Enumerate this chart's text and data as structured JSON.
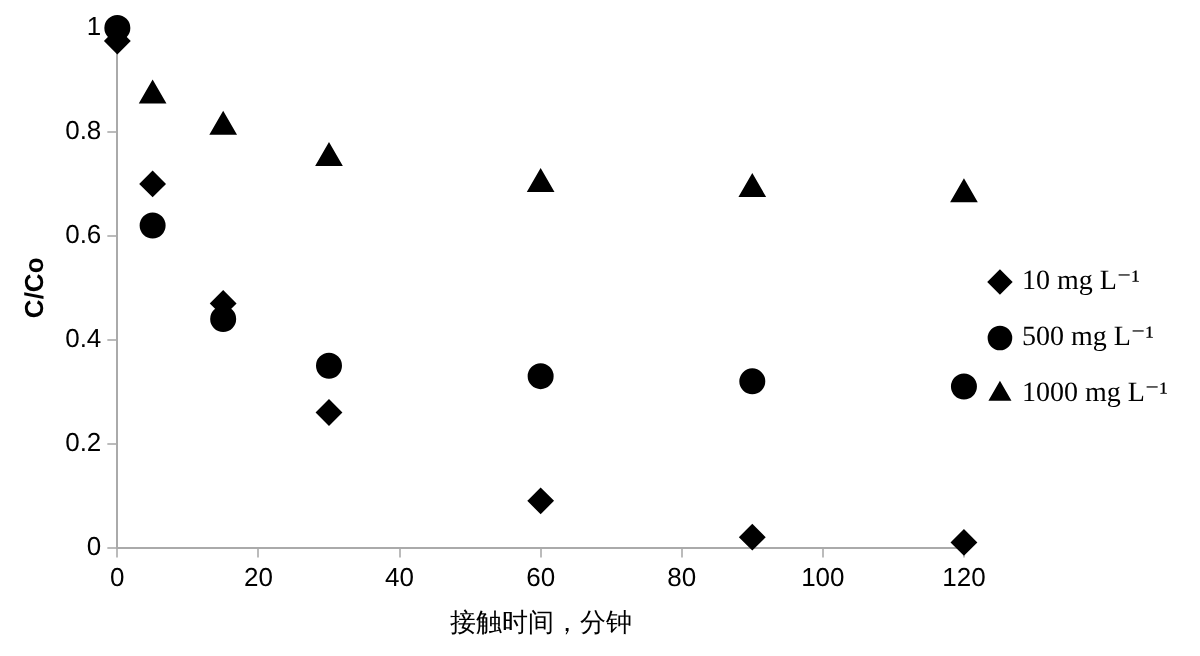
{
  "chart_data": {
    "type": "scatter",
    "xlabel": "接触时间，分钟",
    "ylabel": "C/Co",
    "xlim": [
      0,
      120
    ],
    "xticks": [
      0,
      20,
      40,
      60,
      80,
      100,
      120
    ],
    "ylim": [
      0,
      1
    ],
    "yticks": [
      0,
      0.2,
      0.4,
      0.6,
      0.8,
      1
    ],
    "grid": false,
    "legend": "right",
    "x": [
      0,
      5,
      15,
      30,
      60,
      90,
      120
    ],
    "series": [
      {
        "name": "10 mg L⁻¹",
        "color": "#000000",
        "marker": "diamond",
        "values": [
          0.975,
          0.7,
          0.47,
          0.26,
          0.09,
          0.02,
          0.01
        ]
      },
      {
        "name": "500 mg L⁻¹",
        "color": "#000000",
        "marker": "circle",
        "values": [
          1.0,
          0.62,
          0.44,
          0.35,
          0.33,
          0.32,
          0.31
        ]
      },
      {
        "name": "1000 mg L⁻¹",
        "color": "#000000",
        "marker": "triangle",
        "values": [
          null,
          0.87,
          0.81,
          0.75,
          0.7,
          0.69,
          0.68
        ]
      }
    ]
  }
}
